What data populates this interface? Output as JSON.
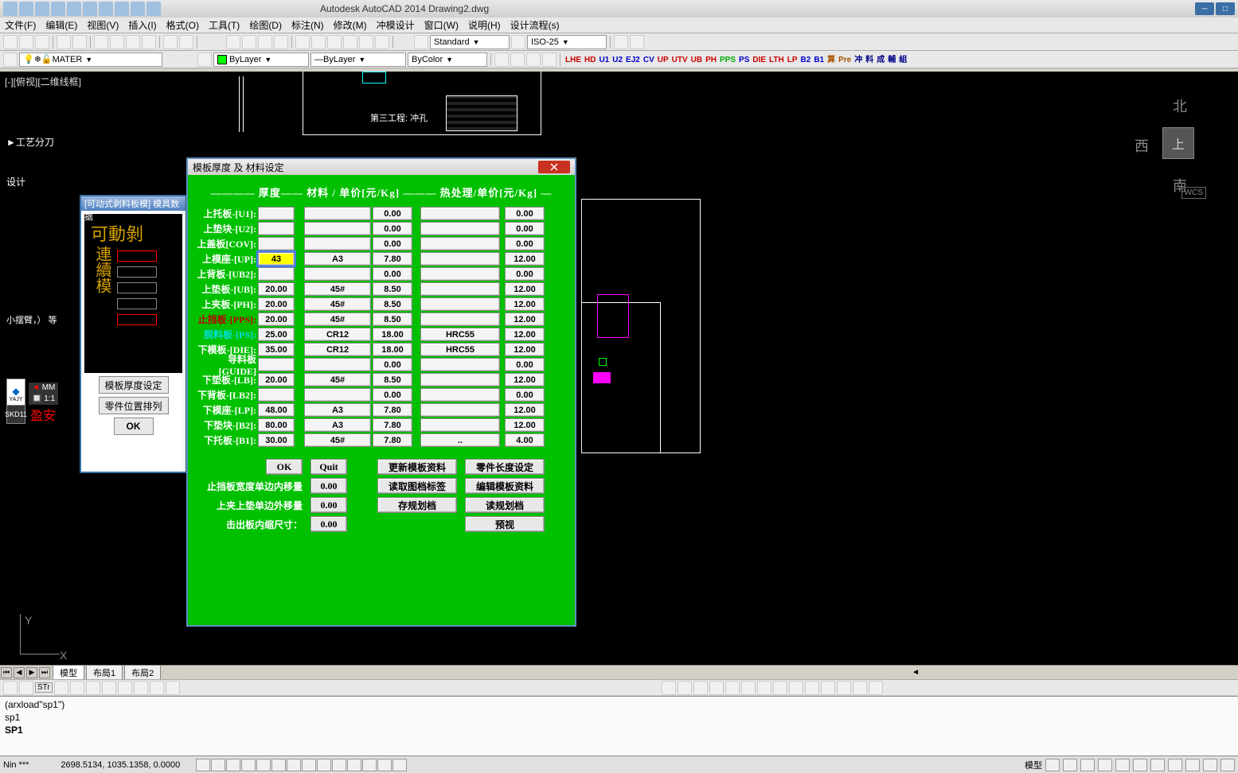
{
  "app": {
    "title": "Autodesk AutoCAD 2014    Drawing2.dwg"
  },
  "menu": [
    "文件(F)",
    "编辑(E)",
    "视图(V)",
    "插入(I)",
    "格式(O)",
    "工具(T)",
    "绘图(D)",
    "标注(N)",
    "修改(M)",
    "冲模设计",
    "窗口(W)",
    "说明(H)",
    "设计流程(s)"
  ],
  "combos": {
    "layer": "MATER",
    "bylayer1": "ByLayer",
    "bylayer2": "ByLayer",
    "bycolor": "ByColor",
    "standard": "Standard",
    "iso": "ISO-25"
  },
  "colorbar": [
    "LHE",
    "HD",
    "U1",
    "U2",
    "EJ2",
    "CV",
    "UP",
    "UTV",
    "UB",
    "PH",
    "PPS",
    "PS",
    "DIE",
    "LTH",
    "LP",
    "B2",
    "B1",
    "算",
    "Pre",
    "冲",
    "料",
    "成",
    "輔",
    "組"
  ],
  "colorbar_colors": [
    "#c00",
    "#c00",
    "#00c",
    "#00c",
    "#00c",
    "#00c",
    "#c00",
    "#c00",
    "#c00",
    "#c00",
    "#0a0",
    "#00c",
    "#c00",
    "#c00",
    "#c00",
    "#00c",
    "#00c",
    "#a50",
    "#a50",
    "#008",
    "#008",
    "#008",
    "#008",
    "#008"
  ],
  "view": {
    "label": "[-][俯视][二维线框]",
    "process": "►工艺分刀",
    "design": "设计",
    "arm": "小摆臂，） 等"
  },
  "compass": {
    "n": "北",
    "w": "西",
    "s": "南",
    "c": "上"
  },
  "wcs": "WCS",
  "cad": {
    "label3": "第三工程: 冲孔"
  },
  "dialog2": {
    "title": "[可动式剥料板模]  模具数据",
    "main": "可動剝",
    "vert": "連續模",
    "btn1": "模板厚度设定",
    "btn2": "零件位置排列",
    "btn3": "OK"
  },
  "side": {
    "mm": "MM",
    "scale": "1:1",
    "skd": "SKD11",
    "yajy": "YAJY",
    "red": "盈安"
  },
  "dialog": {
    "title": "模板厚度 及 材料设定",
    "header": "———— 厚度—— 材料 /  单价[元/Kg] ——— 热处理/单价[元/Kg] —",
    "rows": [
      {
        "label": "上托板-[U1]:",
        "cls": "",
        "v": [
          "",
          "",
          "0.00",
          "",
          "0.00"
        ]
      },
      {
        "label": "上垫块-[U2]:",
        "cls": "",
        "v": [
          "",
          "",
          "0.00",
          "",
          "0.00"
        ]
      },
      {
        "label": "上盖板[COV]:",
        "cls": "",
        "v": [
          "",
          "",
          "0.00",
          "",
          "0.00"
        ]
      },
      {
        "label": "上模座-[UP]:",
        "cls": "",
        "v": [
          "43",
          "A3",
          "7.80",
          "",
          "12.00"
        ],
        "active": true
      },
      {
        "label": "上背板-[UB2]:",
        "cls": "",
        "v": [
          "",
          "",
          "0.00",
          "",
          "0.00"
        ]
      },
      {
        "label": "上垫板-[UB]:",
        "cls": "",
        "v": [
          "20.00",
          "45#",
          "8.50",
          "",
          "12.00"
        ]
      },
      {
        "label": "上夹板-[PH]:",
        "cls": "",
        "v": [
          "20.00",
          "45#",
          "8.50",
          "",
          "12.00"
        ]
      },
      {
        "label": "止挡板-[PPS]:",
        "cls": "red",
        "v": [
          "20.00",
          "45#",
          "8.50",
          "",
          "12.00"
        ]
      },
      {
        "label": "脱料板-[PS]:",
        "cls": "cyan",
        "v": [
          "25.00",
          "CR12",
          "18.00",
          "HRC55",
          "12.00"
        ]
      },
      {
        "label": "下模板-[DIE]:",
        "cls": "",
        "v": [
          "35.00",
          "CR12",
          "18.00",
          "HRC55",
          "12.00"
        ]
      },
      {
        "label": "导料板[GUIDE]",
        "cls": "",
        "v": [
          "",
          "",
          "0.00",
          "",
          "0.00"
        ]
      },
      {
        "label": "下垫板-[LB]:",
        "cls": "",
        "v": [
          "20.00",
          "45#",
          "8.50",
          "",
          "12.00"
        ]
      },
      {
        "label": "下背板-[LB2]:",
        "cls": "",
        "v": [
          "",
          "",
          "0.00",
          "",
          "0.00"
        ]
      },
      {
        "label": "下模座-[LP]:",
        "cls": "",
        "v": [
          "48.00",
          "A3",
          "7.80",
          "",
          "12.00"
        ]
      },
      {
        "label": "下垫块-[B2]:",
        "cls": "",
        "v": [
          "80.00",
          "A3",
          "7.80",
          "",
          "12.00"
        ]
      },
      {
        "label": "下托板-[B1]:",
        "cls": "",
        "v": [
          "30.00",
          "45#",
          "7.80",
          "..",
          "4.00"
        ]
      }
    ],
    "btns": {
      "ok": "OK",
      "quit": "Quit",
      "update": "更新模板资料",
      "partlen": "零件长度设定",
      "readlbl": "读取图档标签",
      "editmat": "编辑模板资料",
      "save": "存规划档",
      "read": "读规划档",
      "preview": "预视"
    },
    "foot": {
      "l1": "止挡板宽度单边内移量",
      "l2": "上夹上垫单边外移量",
      "l3": "击出板内缩尺寸：",
      "v1": "0.00",
      "v2": "0.00",
      "v3": "0.00"
    }
  },
  "tabs": [
    "模型",
    "布局1",
    "布局2"
  ],
  "cmd": {
    "l1": "(arxload\"sp1\")",
    "l2": "sp1",
    "l3": "SP1"
  },
  "status": {
    "coords": "2698.5134, 1035.1358, 0.0000",
    "prefix": "Nin ***",
    "right": "模型"
  }
}
